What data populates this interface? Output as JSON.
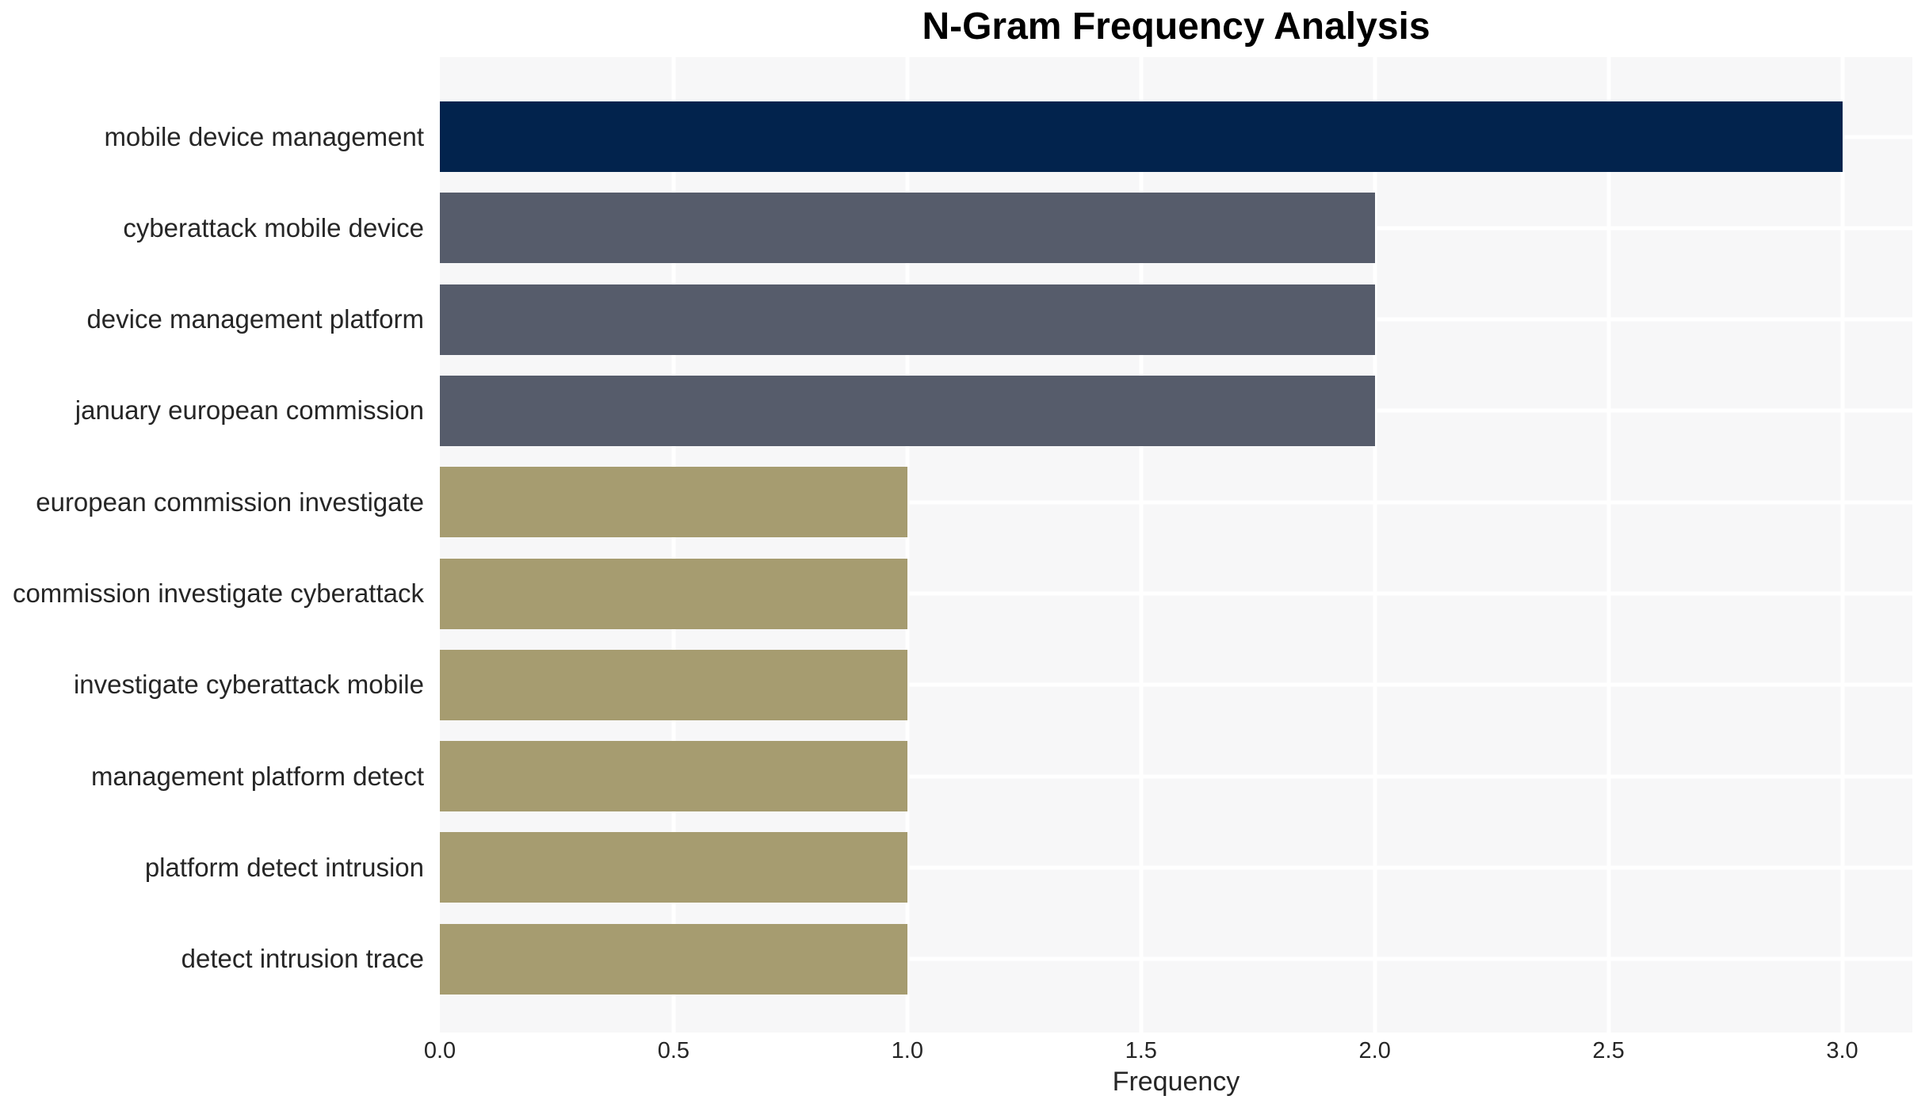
{
  "chart_data": {
    "type": "bar",
    "orientation": "horizontal",
    "title": "N-Gram Frequency Analysis",
    "xlabel": "Frequency",
    "ylabel": "",
    "categories": [
      "mobile device management",
      "cyberattack mobile device",
      "device management platform",
      "january european commission",
      "european commission investigate",
      "commission investigate cyberattack",
      "investigate cyberattack mobile",
      "management platform detect",
      "platform detect intrusion",
      "detect intrusion trace"
    ],
    "values": [
      3,
      2,
      2,
      2,
      1,
      1,
      1,
      1,
      1,
      1
    ],
    "bar_colors": [
      "#02234D",
      "#565C6B",
      "#565C6B",
      "#565C6B",
      "#A69C70",
      "#A69C70",
      "#A69C70",
      "#A69C70",
      "#A69C70",
      "#A69C70"
    ],
    "x_ticks": [
      0.0,
      0.5,
      1.0,
      1.5,
      2.0,
      2.5,
      3.0
    ],
    "x_tick_labels": [
      "0.0",
      "0.5",
      "1.0",
      "1.5",
      "2.0",
      "2.5",
      "3.0"
    ],
    "xlim": [
      0,
      3.15
    ],
    "grid": true,
    "legend": false,
    "colors": {
      "plot_background": "#F7F7F8",
      "figure_background": "#FFFFFF",
      "gridline": "#FFFFFF",
      "text": "#262626"
    }
  }
}
